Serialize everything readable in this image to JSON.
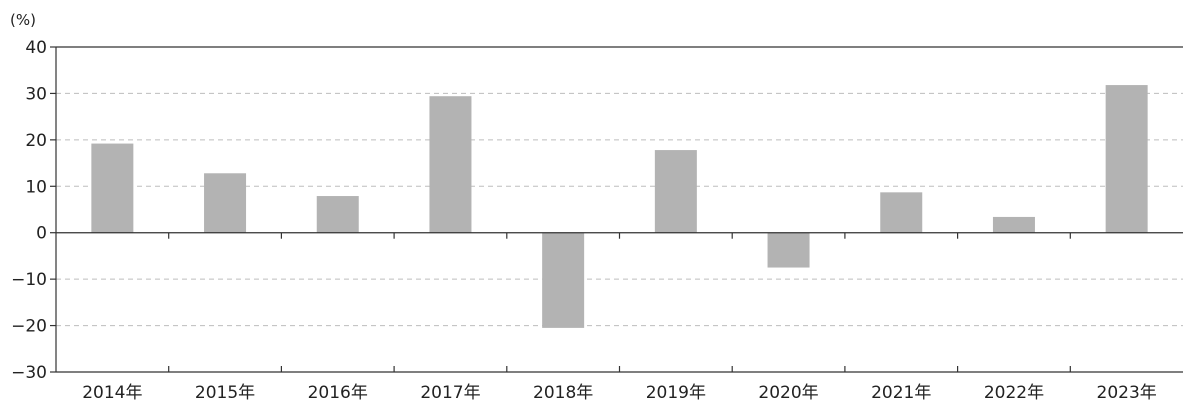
{
  "chart_data": {
    "type": "bar",
    "title": "",
    "xlabel": "",
    "ylabel": "(%)",
    "ylim": [
      -30,
      40
    ],
    "yticks": [
      40,
      30,
      20,
      10,
      0,
      -10,
      -20,
      -30
    ],
    "categories": [
      "2014年",
      "2015年",
      "2016年",
      "2017年",
      "2018年",
      "2019年",
      "2020年",
      "2021年",
      "2022年",
      "2023年"
    ],
    "values": [
      19.2,
      12.8,
      7.9,
      29.4,
      -20.5,
      17.8,
      -7.5,
      8.7,
      3.4,
      31.8
    ],
    "grid": "horizontal dashed",
    "legend": "none",
    "colors": {
      "bar": "#b3b3b3",
      "axis": "#333333",
      "grid": "#bdbdbd",
      "text": "#222222"
    }
  }
}
